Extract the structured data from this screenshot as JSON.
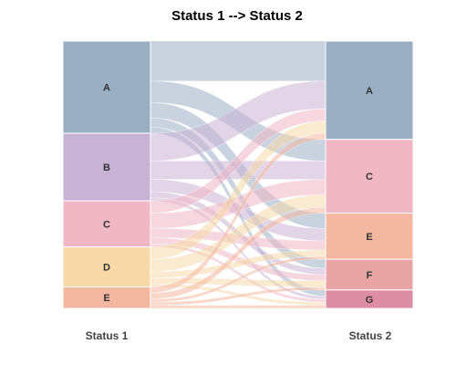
{
  "chart_data": {
    "type": "sankey",
    "title": "Status 1 --> Status 2",
    "source_axis_label": "Status 1",
    "target_axis_label": "Status 2",
    "flow_opacity": 0.55,
    "sources": [
      {
        "id": "A",
        "label": "A",
        "color": "#9aafc4"
      },
      {
        "id": "B",
        "label": "B",
        "color": "#c9b3d4"
      },
      {
        "id": "C",
        "label": "C",
        "color": "#f1b7c4"
      },
      {
        "id": "D",
        "label": "D",
        "color": "#f6d9a7"
      },
      {
        "id": "E",
        "label": "E",
        "color": "#f4b8a0"
      }
    ],
    "targets": [
      {
        "id": "A",
        "label": "A",
        "color": "#9aafc4"
      },
      {
        "id": "C",
        "label": "C",
        "color": "#f1b7c4"
      },
      {
        "id": "E",
        "label": "E",
        "color": "#f4b8a0"
      },
      {
        "id": "F",
        "label": "F",
        "color": "#e9a5a6"
      },
      {
        "id": "G",
        "label": "G",
        "color": "#de8ea4"
      }
    ],
    "flows": [
      {
        "from": "A",
        "to": "A",
        "value": 13
      },
      {
        "from": "A",
        "to": "C",
        "value": 7
      },
      {
        "from": "A",
        "to": "E",
        "value": 5
      },
      {
        "from": "A",
        "to": "F",
        "value": 3
      },
      {
        "from": "A",
        "to": "G",
        "value": 2
      },
      {
        "from": "B",
        "to": "A",
        "value": 9
      },
      {
        "from": "B",
        "to": "C",
        "value": 6
      },
      {
        "from": "B",
        "to": "E",
        "value": 4
      },
      {
        "from": "B",
        "to": "F",
        "value": 2
      },
      {
        "from": "B",
        "to": "G",
        "value": 1
      },
      {
        "from": "C",
        "to": "A",
        "value": 4
      },
      {
        "from": "C",
        "to": "C",
        "value": 5
      },
      {
        "from": "C",
        "to": "E",
        "value": 3
      },
      {
        "from": "C",
        "to": "F",
        "value": 2
      },
      {
        "from": "C",
        "to": "G",
        "value": 1
      },
      {
        "from": "D",
        "to": "A",
        "value": 4
      },
      {
        "from": "D",
        "to": "C",
        "value": 4
      },
      {
        "from": "D",
        "to": "E",
        "value": 2
      },
      {
        "from": "D",
        "to": "F",
        "value": 2
      },
      {
        "from": "D",
        "to": "G",
        "value": 1
      },
      {
        "from": "E",
        "to": "A",
        "value": 2
      },
      {
        "from": "E",
        "to": "C",
        "value": 2
      },
      {
        "from": "E",
        "to": "E",
        "value": 1
      },
      {
        "from": "E",
        "to": "F",
        "value": 1
      },
      {
        "from": "E",
        "to": "G",
        "value": 1
      }
    ]
  }
}
